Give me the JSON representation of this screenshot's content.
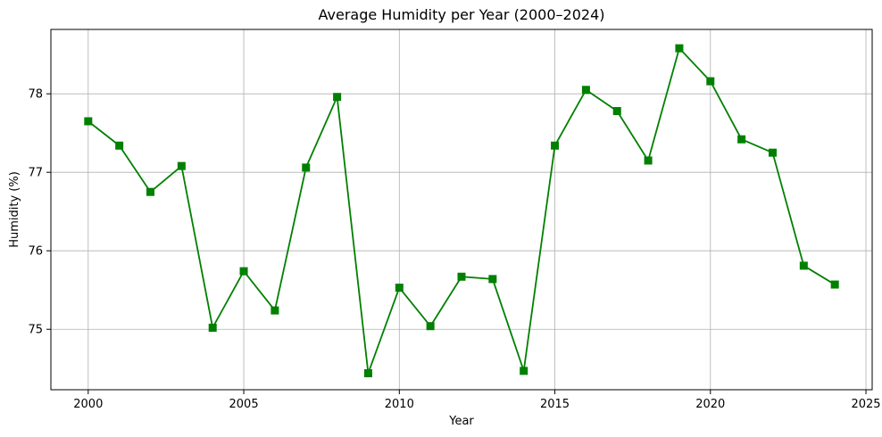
{
  "chart_data": {
    "type": "line",
    "title": "Average Humidity per Year (2000–2024)",
    "xlabel": "Year",
    "ylabel": "Humidity (%)",
    "xlim": [
      1998.8,
      2025.2
    ],
    "ylim": [
      74.23,
      78.82
    ],
    "xticks": [
      2000,
      2005,
      2010,
      2015,
      2020,
      2025
    ],
    "yticks": [
      75,
      76,
      77,
      78
    ],
    "grid": true,
    "series": [
      {
        "color": "#008000",
        "marker": "square",
        "x": [
          2000,
          2001,
          2002,
          2003,
          2004,
          2005,
          2006,
          2007,
          2008,
          2009,
          2010,
          2011,
          2012,
          2013,
          2014,
          2015,
          2016,
          2017,
          2018,
          2019,
          2020,
          2021,
          2022,
          2023,
          2024
        ],
        "y": [
          77.65,
          77.34,
          76.75,
          77.08,
          75.02,
          75.74,
          75.24,
          77.06,
          77.96,
          74.44,
          75.53,
          75.04,
          75.67,
          75.64,
          74.47,
          77.34,
          78.05,
          77.78,
          77.15,
          78.58,
          78.16,
          77.42,
          77.25,
          75.81,
          75.57
        ]
      }
    ]
  }
}
